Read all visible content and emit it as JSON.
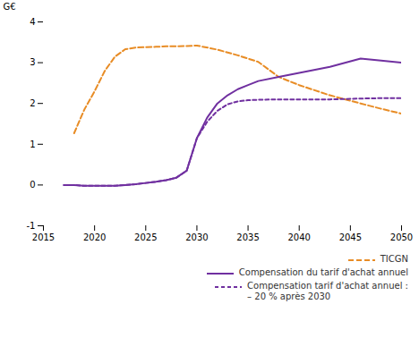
{
  "chart_data": {
    "type": "line",
    "ylabel": "G€",
    "xlim": [
      2015,
      2050
    ],
    "xticks": [
      2015,
      2020,
      2025,
      2030,
      2035,
      2040,
      2045,
      2050
    ],
    "ylim": [
      -1,
      4
    ],
    "yticks": [
      -1,
      0,
      1,
      2,
      3,
      4
    ],
    "grid": false,
    "legend": "lower right",
    "series": [
      {
        "name": "TICGN",
        "color": "#E88C25",
        "line_style": "dashed",
        "x": [
          2018,
          2019,
          2020,
          2021,
          2022,
          2023,
          2024,
          2025,
          2026,
          2027,
          2028,
          2029,
          2030,
          2032,
          2034,
          2036,
          2038,
          2040,
          2043,
          2046,
          2048,
          2050
        ],
        "values": [
          1.27,
          1.85,
          2.3,
          2.8,
          3.15,
          3.33,
          3.37,
          3.38,
          3.39,
          3.4,
          3.4,
          3.41,
          3.42,
          3.32,
          3.18,
          3.02,
          2.65,
          2.45,
          2.2,
          2.0,
          1.87,
          1.75
        ]
      },
      {
        "name": "Compensation du tarif d'achat annuel",
        "color": "#7030A0",
        "line_style": "solid",
        "x": [
          2017,
          2018,
          2019,
          2020,
          2021,
          2022,
          2023,
          2024,
          2025,
          2026,
          2027,
          2028,
          2029,
          2030,
          2031,
          2032,
          2033,
          2034,
          2035,
          2036,
          2038,
          2040,
          2043,
          2046,
          2048,
          2050
        ],
        "values": [
          0.0,
          0.0,
          -0.02,
          -0.02,
          -0.02,
          -0.02,
          0.0,
          0.02,
          0.05,
          0.08,
          0.12,
          0.18,
          0.35,
          1.15,
          1.65,
          2.0,
          2.2,
          2.35,
          2.45,
          2.55,
          2.65,
          2.75,
          2.9,
          3.1,
          3.05,
          3.0
        ]
      },
      {
        "name": "Compensation tarif d'achat annuel :\n– 20 % après 2030",
        "color": "#7030A0",
        "line_style": "dashed",
        "x": [
          2017,
          2018,
          2019,
          2020,
          2021,
          2022,
          2023,
          2024,
          2025,
          2026,
          2027,
          2028,
          2029,
          2030,
          2031,
          2032,
          2033,
          2034,
          2035,
          2036,
          2038,
          2040,
          2043,
          2046,
          2048,
          2050
        ],
        "values": [
          0.0,
          0.0,
          -0.02,
          -0.02,
          -0.02,
          -0.02,
          0.0,
          0.02,
          0.05,
          0.08,
          0.12,
          0.18,
          0.35,
          1.15,
          1.55,
          1.82,
          1.98,
          2.05,
          2.08,
          2.09,
          2.1,
          2.1,
          2.1,
          2.12,
          2.13,
          2.13
        ]
      }
    ]
  }
}
